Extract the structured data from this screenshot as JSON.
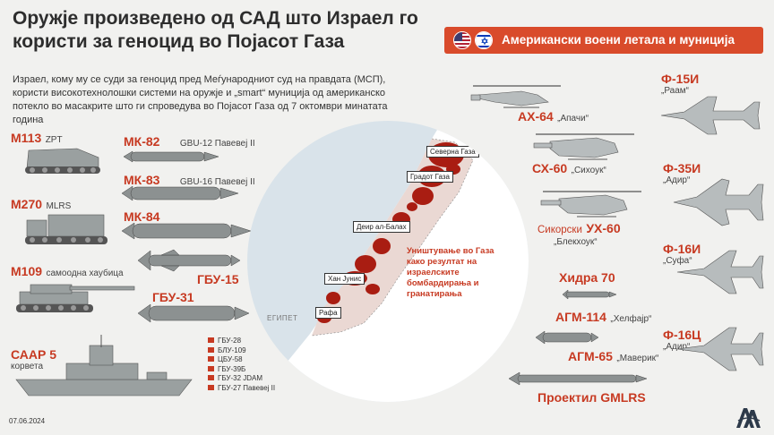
{
  "title": "Оружје произведено од САД што Израел го користи за геноцид во Појасот Газа",
  "banner": "Американски воени летала и муниција",
  "subtitle_part1": "Израел, кому му се суди за геноцид пред Меѓународниот суд на правдата (МСП), користи високотехнолошки системи на оружје и „smart“ муниција од американско потекло во масакрите што ги спроведува во Појасот Газа од 7 октомври минатата година",
  "vehicles": [
    {
      "name": "M113",
      "sub": "ZPT"
    },
    {
      "name": "M270",
      "sub": "MLRS"
    },
    {
      "name": "M109",
      "sub": "самоодна хаубица"
    },
    {
      "name": "СААР 5",
      "sub": "корвета"
    }
  ],
  "bombs": [
    {
      "name": "МК-82",
      "sub": "GBU-12  Павевеј II"
    },
    {
      "name": "МК-83",
      "sub": "GBU-16 Павевеј II"
    },
    {
      "name": "МК-84",
      "sub": ""
    },
    {
      "name": "ГБУ-15",
      "sub": ""
    },
    {
      "name": "ГБУ-31",
      "sub": ""
    }
  ],
  "legend": [
    "ГБУ-28",
    "БЛУ-109",
    "ЦБУ-58",
    "ГБУ-39Б",
    "ГБУ-32 JDAM",
    "ГБУ-27 Павевеј II"
  ],
  "map": {
    "labels": [
      "Северна Газа",
      "Градот Газа",
      "Деир ал-Балах",
      "Хан Јунис",
      "Рафа"
    ],
    "egypt": "ЕГИПЕТ",
    "destroyed": "Уништување во Газа како резултат на израелските бомбардирања и гранатирања"
  },
  "aircraft": [
    {
      "name": "АХ-64",
      "sub": "„Апачи“"
    },
    {
      "name": "СХ-60",
      "sub": "„Сихоук“"
    },
    {
      "name_pre": "Сикорски",
      "name": "УХ-60",
      "sub": "„Блекхоук“"
    },
    {
      "name": "Ф-15И",
      "sub": "„Раам“"
    },
    {
      "name": "Ф-35И",
      "sub": "„Адир“"
    },
    {
      "name": "Ф-16И",
      "sub": "„Суфа“"
    },
    {
      "name": "Ф-16Ц",
      "sub": "„Адир“"
    }
  ],
  "missiles": [
    {
      "name": "Хидра 70",
      "sub": ""
    },
    {
      "name": "АГМ-114",
      "sub": "„Хелфајр“"
    },
    {
      "name": "АГМ-65",
      "sub": "„Маверик“"
    },
    {
      "name": "Проектил GMLRS",
      "sub": ""
    }
  ],
  "date": "07.06.2024",
  "colors": {
    "accent": "#c73a22",
    "banner": "#d94b2b",
    "background": "#f1f1ef"
  }
}
